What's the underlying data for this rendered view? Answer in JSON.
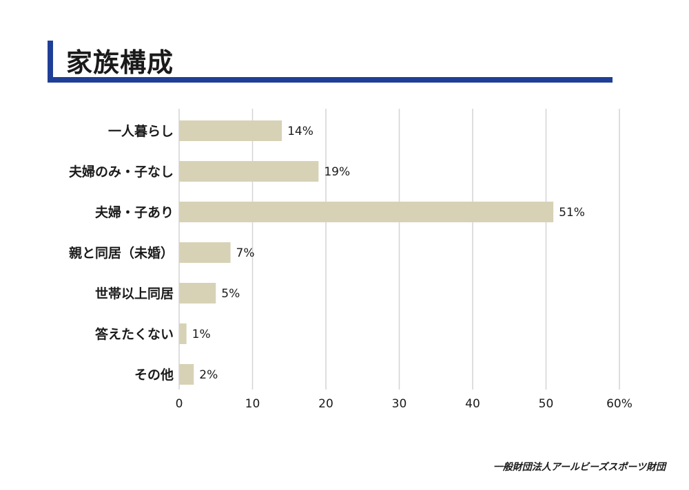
{
  "header": {
    "title": "家族構成"
  },
  "footer": {
    "org": "一般財団法人アールビーズスポーツ財団"
  },
  "colors": {
    "accent": "#1f3f96",
    "bar": "#d7d2b6",
    "grid": "#d4d4d4"
  },
  "chart_data": {
    "type": "bar",
    "orientation": "horizontal",
    "categories": [
      "一人暮らし",
      "夫婦のみ・子なし",
      "夫婦・子あり",
      "親と同居（未婚）",
      "世帯以上同居",
      "答えたくない",
      "その他"
    ],
    "values": [
      14,
      19,
      51,
      7,
      5,
      1,
      2
    ],
    "value_labels": [
      "14%",
      "19%",
      "51%",
      "7%",
      "5%",
      "1%",
      "2%"
    ],
    "xlim": [
      0,
      60
    ],
    "xticks": [
      "0",
      "10",
      "20",
      "30",
      "40",
      "50",
      "60%"
    ],
    "grid": true
  }
}
